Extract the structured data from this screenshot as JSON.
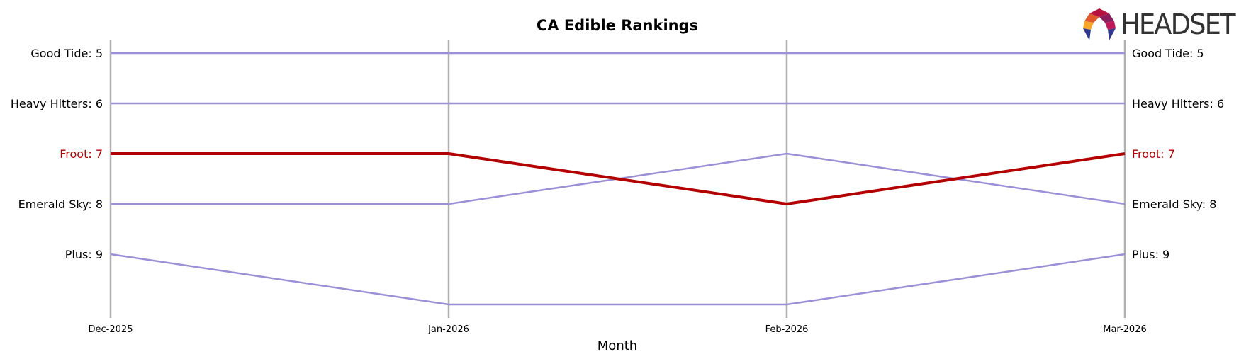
{
  "logo": {
    "text": "HEADSET",
    "colors": [
      "#e0592a",
      "#f7a82b",
      "#b5123f",
      "#8c1e5e",
      "#c2185b",
      "#2e3a8c"
    ]
  },
  "chart_data": {
    "type": "line",
    "title": "CA Edible Rankings",
    "xlabel": "Month",
    "ylabel": "",
    "x": [
      "Dec-2025",
      "Jan-2026",
      "Feb-2026",
      "Mar-2026"
    ],
    "ylim": [
      10.3,
      4.75
    ],
    "y_inverted": true,
    "grid": "vertical lines at each month",
    "highlight_series": "Froot",
    "colors": {
      "default": "#9b8fd8",
      "highlight": "#b30000",
      "grid": "#b0b0b0",
      "text": "#000000"
    },
    "series": [
      {
        "name": "Good Tide",
        "values": [
          5,
          5,
          5,
          5
        ],
        "left_label": "Good Tide: 5",
        "right_label": "Good Tide: 5"
      },
      {
        "name": "Heavy Hitters",
        "values": [
          6,
          6,
          6,
          6
        ],
        "left_label": "Heavy Hitters: 6",
        "right_label": "Heavy Hitters: 6"
      },
      {
        "name": "Froot",
        "values": [
          7,
          7,
          8,
          7
        ],
        "left_label": "Froot: 7",
        "right_label": "Froot: 7"
      },
      {
        "name": "Emerald Sky",
        "values": [
          8,
          8,
          7,
          8
        ],
        "left_label": "Emerald Sky: 8",
        "right_label": "Emerald Sky: 8"
      },
      {
        "name": "Plus",
        "values": [
          9,
          10,
          10,
          9
        ],
        "left_label": "Plus: 9",
        "right_label": "Plus: 9"
      }
    ]
  }
}
